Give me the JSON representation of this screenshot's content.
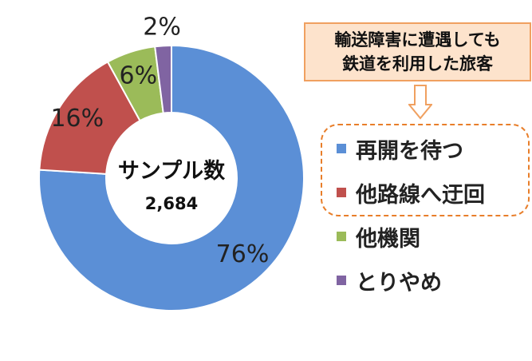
{
  "chart_data": {
    "type": "pie",
    "donut": true,
    "slices": [
      {
        "label": "再開を待つ",
        "value": 76,
        "value_label": "76%",
        "color": "#5b8fd6"
      },
      {
        "label": "他路線へ迂回",
        "value": 16,
        "value_label": "16%",
        "color": "#c0504d"
      },
      {
        "label": "他機関",
        "value": 6,
        "value_label": "6%",
        "color": "#9bbb59"
      },
      {
        "label": "とりやめ",
        "value": 2,
        "value_label": "2%",
        "color": "#8064a2"
      }
    ],
    "center": {
      "title": "サンプル数",
      "count": "2,684"
    },
    "legend_position": "right"
  },
  "callout": {
    "lines": [
      "輸送障害に遭遇しても",
      "鉄道を利用した旅客"
    ]
  }
}
